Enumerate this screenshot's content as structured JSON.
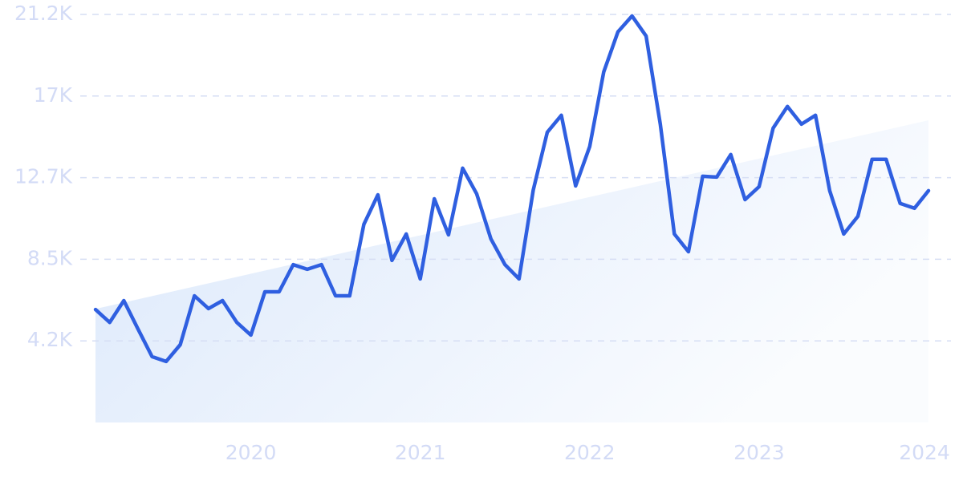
{
  "chart_data": {
    "type": "line",
    "x": [
      2019.083,
      2019.167,
      2019.25,
      2019.333,
      2019.417,
      2019.5,
      2019.583,
      2019.667,
      2019.75,
      2019.833,
      2019.917,
      2020,
      2020.083,
      2020.167,
      2020.25,
      2020.333,
      2020.417,
      2020.5,
      2020.583,
      2020.667,
      2020.75,
      2020.833,
      2020.917,
      2021,
      2021.083,
      2021.167,
      2021.25,
      2021.333,
      2021.417,
      2021.5,
      2021.583,
      2021.667,
      2021.75,
      2021.833,
      2021.917,
      2022,
      2022.083,
      2022.167,
      2022.25,
      2022.333,
      2022.417,
      2022.5,
      2022.583,
      2022.667,
      2022.75,
      2022.833,
      2022.917,
      2023,
      2023.083,
      2023.167,
      2023.25,
      2023.333,
      2023.417,
      2023.5,
      2023.583,
      2023.667,
      2023.75,
      2023.833,
      2023.917,
      2024
    ],
    "series": [
      {
        "color": "#2f5fe0",
        "values": [
          5870,
          5200,
          6330,
          4870,
          3420,
          3170,
          4040,
          6580,
          5920,
          6330,
          5200,
          4540,
          6790,
          6790,
          8200,
          7960,
          8200,
          6580,
          6580,
          10290,
          11830,
          8420,
          9790,
          7460,
          11620,
          9750,
          13210,
          11880,
          9540,
          8200,
          7460,
          12080,
          15080,
          15960,
          12290,
          14330,
          18210,
          20290,
          21120,
          20080,
          15500,
          9790,
          8870,
          12790,
          12750,
          13920,
          11580,
          12250,
          15290,
          16420,
          15500,
          15960,
          12040,
          9790,
          10710,
          13670,
          13670,
          11380,
          11130,
          12040
        ]
      }
    ],
    "trend": {
      "color": "#dbe8fb",
      "x": [
        2019.083,
        2024
      ],
      "values": [
        5900,
        15700
      ]
    },
    "xlim": [
      2019.083,
      2024
    ],
    "xticks": [
      2020,
      2021,
      2022,
      2023,
      2024
    ],
    "ylim": [
      0,
      21200
    ],
    "yticks": [
      {
        "value": 4240,
        "label": "4.2K"
      },
      {
        "value": 8480,
        "label": "8.5K"
      },
      {
        "value": 12720,
        "label": "12.7K"
      },
      {
        "value": 16960,
        "label": "17K"
      },
      {
        "value": 21200,
        "label": "21.2K"
      }
    ],
    "grid": true
  }
}
